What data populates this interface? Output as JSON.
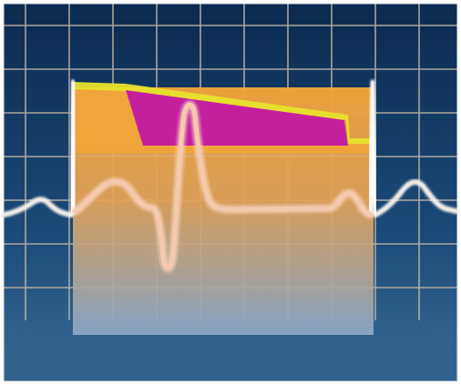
{
  "colors": {
    "background_top": "#0b2a4f",
    "background_mid": "#1a4a78",
    "background_bottom": "#3a6d96",
    "grid": "#c7b7a8",
    "border": "#ffffff",
    "block_top": "#f0a33a",
    "block_bottom": "#8da9c8",
    "plateau_magenta": "#c4209e",
    "plateau_edge_yellow": "#e7e22c",
    "trace_outside": "#f4efe9",
    "trace_inside": "#f6c9ad",
    "trace_inside_halo": "#fde3d4",
    "floor_band": "#2f5f8b"
  },
  "icons": {
    "waveform": "ecg-waveform-icon",
    "action_potential": "action-potential-shape-icon"
  }
}
